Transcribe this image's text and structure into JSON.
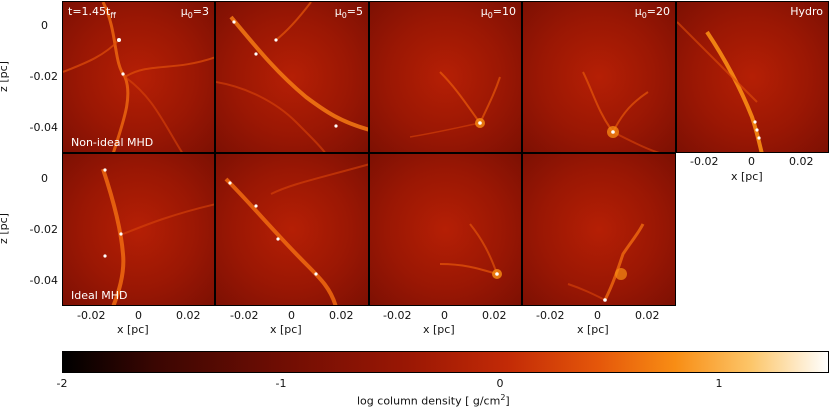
{
  "row1": {
    "time_label": "t=1.45t",
    "time_sub": "ff",
    "row_label": "Non-ideal MHD",
    "panels": [
      {
        "mu_symbol": "μ",
        "mu_sub": "0",
        "mu_value": "=3"
      },
      {
        "mu_symbol": "μ",
        "mu_sub": "0",
        "mu_value": "=5"
      },
      {
        "mu_symbol": "μ",
        "mu_sub": "0",
        "mu_value": "=10"
      },
      {
        "mu_symbol": "μ",
        "mu_sub": "0",
        "mu_value": "=20"
      },
      {
        "label": "Hydro"
      }
    ]
  },
  "row2": {
    "row_label": "Ideal MHD"
  },
  "axes": {
    "z_label": "z [pc]",
    "x_label": "x [pc]",
    "z_ticks": [
      "0",
      "-0.02",
      "-0.04"
    ],
    "x_ticks": [
      "-0.02",
      "0",
      "0.02"
    ]
  },
  "colorbar": {
    "ticks": [
      "-2",
      "-1",
      "0",
      "1"
    ],
    "label": "log column density [ g/cm",
    "label_sup": "2",
    "label_end": "]",
    "colors": [
      "#000000",
      "#3a0602",
      "#9a1704",
      "#e5570a",
      "#f88d14",
      "#ffffff"
    ]
  }
}
